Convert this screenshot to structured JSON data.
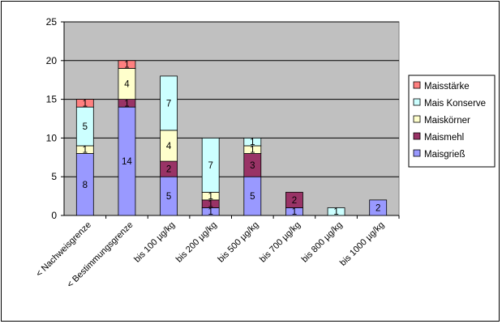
{
  "chart_data": {
    "type": "bar",
    "stacked": true,
    "categories": [
      "< Nachweisgrenze",
      "< Bestimmungsgrenze",
      "bis 100 µg/kg",
      "bis 200 µg/kg",
      "bis 500 µg/kg",
      "bis 700 µg/kg",
      "bis 800 µg/kg",
      "bis 1000 µg/kg"
    ],
    "series": [
      {
        "name": "Maisgrieß",
        "color": "#9999ff",
        "values": [
          8,
          14,
          5,
          1,
          5,
          1,
          0,
          2
        ],
        "labels": [
          "8",
          "14",
          "5",
          "1",
          "5",
          "1",
          "",
          "2"
        ]
      },
      {
        "name": "Maismehl",
        "color": "#993366",
        "values": [
          0,
          1,
          2,
          1,
          3,
          2,
          0,
          0
        ],
        "labels": [
          "",
          "1",
          "2",
          "1",
          "3",
          "2",
          "",
          ""
        ]
      },
      {
        "name": "Maiskörner",
        "color": "#ffffcc",
        "values": [
          1,
          4,
          4,
          1,
          1,
          0,
          0,
          0
        ],
        "labels": [
          "1",
          "4",
          "4",
          "1",
          "1",
          "",
          "",
          ""
        ]
      },
      {
        "name": "Mais Konserve",
        "color": "#ccffff",
        "values": [
          5,
          0,
          7,
          7,
          1,
          0,
          1,
          0
        ],
        "labels": [
          "5",
          "",
          "7",
          "7",
          "1",
          "",
          "1",
          ""
        ]
      },
      {
        "name": "Maisstärke",
        "color": "#ff8080",
        "values": [
          1,
          1,
          0,
          0,
          0,
          0,
          0,
          0
        ],
        "labels": [
          "1",
          "1",
          "",
          "",
          "",
          "",
          "",
          ""
        ]
      }
    ],
    "yticks": [
      "0",
      "5",
      "10",
      "15",
      "20",
      "25"
    ],
    "ylim": [
      0,
      25
    ],
    "grid": true,
    "plot_background": "#c0c0c0",
    "legend_position": "right"
  }
}
